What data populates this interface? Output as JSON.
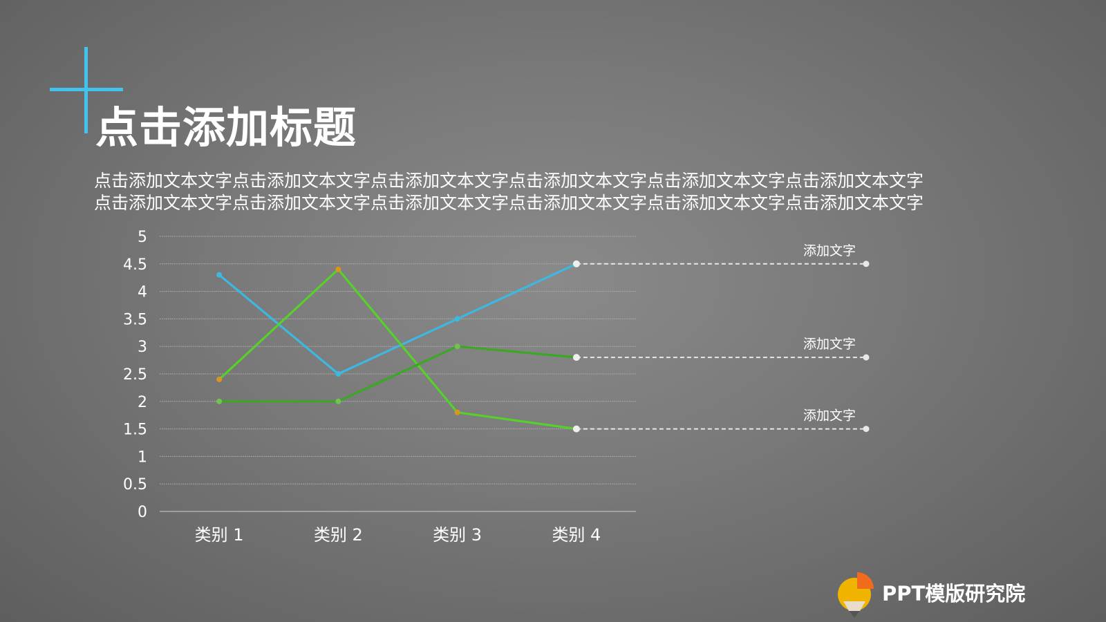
{
  "slide": {
    "title": "点击添加标题",
    "body_lines": [
      "点击添加文本文字点击添加文本文字点击添加文本文字点击添加文本文字点击添加文本文字点击添加文本文字",
      "点击添加文本文字点击添加文本文字点击添加文本文字点击添加文本文字点击添加文本文字点击添加文本文字"
    ],
    "accent_color": "#41c3ee",
    "brand": "PPT模版研究院"
  },
  "chart_data": {
    "type": "line",
    "categories": [
      "类别 1",
      "类别 2",
      "类别 3",
      "类别 4"
    ],
    "ylim": [
      0,
      5
    ],
    "yticks": [
      "0",
      "0.5",
      "1",
      "1.5",
      "2",
      "2.5",
      "3",
      "3.5",
      "4",
      "4.5",
      "5"
    ],
    "grid": true,
    "series": [
      {
        "color": "#3db8e0",
        "marker_color": "#3db8e0",
        "values": [
          4.3,
          2.5,
          3.5,
          4.5
        ]
      },
      {
        "color": "#56d12a",
        "marker_color": "#d8961c",
        "values": [
          2.4,
          4.4,
          1.8,
          1.5
        ]
      },
      {
        "color": "#3aa824",
        "marker_color": "#74c050",
        "values": [
          2.0,
          2.0,
          3.0,
          2.8
        ]
      }
    ],
    "annotations": [
      {
        "label": "添加文字",
        "y": 4.5
      },
      {
        "label": "添加文字",
        "y": 2.8
      },
      {
        "label": "添加文字",
        "y": 1.5
      }
    ]
  }
}
